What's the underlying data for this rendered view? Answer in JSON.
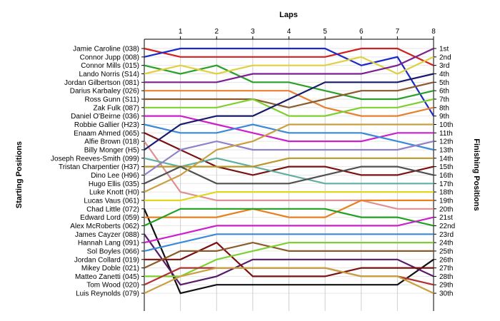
{
  "chart_data": {
    "type": "line",
    "title": "Laps",
    "ylabel_left": "Starting Positions",
    "ylabel_right": "Finishing Positions",
    "x": [
      0,
      1,
      2,
      3,
      4,
      5,
      6,
      7,
      8
    ],
    "x_tick_labels": [
      "1",
      "2",
      "3",
      "4",
      "5",
      "6",
      "7",
      "8"
    ],
    "finishing_labels": [
      "1st",
      "2nd",
      "3rd",
      "4th",
      "5th",
      "6th",
      "7th",
      "8th",
      "9th",
      "10th",
      "11th",
      "12th",
      "13th",
      "14th",
      "15th",
      "16th",
      "17th",
      "18th",
      "19th",
      "20th",
      "21st",
      "22nd",
      "23rd",
      "24th",
      "25th",
      "26th",
      "27th",
      "28th",
      "29th",
      "30th"
    ],
    "ylim": [
      1,
      30
    ],
    "grid": true,
    "series": [
      {
        "name": "Jamie Caroline (038)",
        "color": "#d02020",
        "positions": [
          1,
          2,
          2,
          2,
          2,
          2,
          1,
          1,
          3
        ]
      },
      {
        "name": "Connor Jupp (008)",
        "color": "#1c2ac8",
        "positions": [
          2,
          1,
          1,
          1,
          1,
          1,
          3,
          2,
          9
        ]
      },
      {
        "name": "Connor Mills (015)",
        "color": "#2aa02a",
        "positions": [
          3,
          4,
          3,
          5,
          5,
          6,
          7,
          7,
          6
        ]
      },
      {
        "name": "Lando Norris (S14)",
        "color": "#e0d040",
        "positions": [
          4,
          3,
          4,
          3,
          3,
          3,
          2,
          4,
          2
        ]
      },
      {
        "name": "Jordan Gilbertson (081)",
        "color": "#7a2090",
        "positions": [
          5,
          5,
          5,
          4,
          4,
          4,
          4,
          3,
          1
        ]
      },
      {
        "name": "Darius Karbaley (026)",
        "color": "#e88030",
        "positions": [
          6,
          6,
          6,
          6,
          6,
          8,
          9,
          9,
          8
        ]
      },
      {
        "name": "Ross Gunn (S11)",
        "color": "#8b5a2b",
        "positions": [
          7,
          7,
          7,
          7,
          8,
          7,
          6,
          6,
          5
        ]
      },
      {
        "name": "Zak Fulk (087)",
        "color": "#7ed030",
        "positions": [
          8,
          8,
          8,
          7,
          9,
          9,
          8,
          8,
          7
        ]
      },
      {
        "name": "Daniel O'Beirne (036)",
        "color": "#cc20cc",
        "positions": [
          9,
          9,
          10,
          11,
          12,
          12,
          12,
          11,
          11
        ]
      },
      {
        "name": "Robbie Gallier (H23)",
        "color": "#3a8ad8",
        "positions": [
          10,
          11,
          11,
          10,
          11,
          11,
          11,
          12,
          13
        ]
      },
      {
        "name": "Enaam Ahmed (065)",
        "color": "#7a1010",
        "positions": [
          11,
          13,
          15,
          16,
          15,
          15,
          16,
          16,
          15
        ]
      },
      {
        "name": "Alfie Brown (018)",
        "color": "#e09090",
        "positions": [
          12,
          18,
          19,
          19,
          19,
          19,
          19,
          20,
          20
        ]
      },
      {
        "name": "Billy Monger (H5)",
        "color": "#1a1a6a",
        "positions": [
          13,
          10,
          9,
          9,
          7,
          5,
          5,
          5,
          4
        ]
      },
      {
        "name": "Joseph Reeves-Smith (099)",
        "color": "#60b0a0",
        "positions": [
          14,
          15,
          14,
          15,
          16,
          17,
          17,
          17,
          17
        ]
      },
      {
        "name": "Tristan Charpentier (H37)",
        "color": "#b89828",
        "positions": [
          15,
          15,
          15,
          15,
          14,
          14,
          14,
          14,
          14
        ]
      },
      {
        "name": "Dino Lee (H96)",
        "color": "#9080c8",
        "positions": [
          16,
          13,
          12,
          13,
          13,
          13,
          13,
          13,
          12
        ]
      },
      {
        "name": "Hugo Ellis (035)",
        "color": "#505050",
        "positions": [
          17,
          15,
          17,
          17,
          17,
          16,
          15,
          15,
          16
        ]
      },
      {
        "name": "Luke Knott (H0)",
        "color": "#c8a040",
        "positions": [
          18,
          16,
          13,
          12,
          10,
          10,
          10,
          10,
          10
        ]
      },
      {
        "name": "Lucas Vaus (061)",
        "color": "#e0d820",
        "positions": [
          19,
          19,
          18,
          18,
          18,
          18,
          18,
          18,
          18
        ]
      },
      {
        "name": "Chad Little (072)",
        "color": "#101010",
        "positions": [
          20,
          30,
          29,
          29,
          29,
          29,
          29,
          29,
          26
        ]
      },
      {
        "name": "Edward Lord (059)",
        "color": "#e88020",
        "positions": [
          21,
          21,
          21,
          20,
          21,
          21,
          19,
          19,
          19
        ]
      },
      {
        "name": "Alex McRoberts (062)",
        "color": "#22a022",
        "positions": [
          22,
          20,
          20,
          20,
          20,
          20,
          21,
          21,
          22
        ]
      },
      {
        "name": "James Cayzer (088)",
        "color": "#5a1a6a",
        "positions": [
          23,
          29,
          28,
          26,
          26,
          26,
          26,
          26,
          28
        ]
      },
      {
        "name": "Hannah Lang (091)",
        "color": "#cc20cc",
        "positions": [
          24,
          23,
          22,
          22,
          22,
          22,
          22,
          22,
          21
        ]
      },
      {
        "name": "Sol Boyles (066)",
        "color": "#3a8ad8",
        "positions": [
          25,
          24,
          23,
          23,
          23,
          23,
          23,
          23,
          23
        ]
      },
      {
        "name": "Jordan Collard (019)",
        "color": "#7a1010",
        "positions": [
          26,
          26,
          24,
          28,
          28,
          28,
          27,
          27,
          27
        ]
      },
      {
        "name": "Mikey Doble (021)",
        "color": "#8b5a2b",
        "positions": [
          27,
          25,
          25,
          24,
          25,
          25,
          25,
          25,
          25
        ]
      },
      {
        "name": "Matteo Zanetti (045)",
        "color": "#7ed030",
        "positions": [
          28,
          28,
          26,
          25,
          24,
          24,
          24,
          24,
          24
        ]
      },
      {
        "name": "Tom Wood (020)",
        "color": "#b03030",
        "positions": [
          29,
          27,
          27,
          27,
          27,
          27,
          28,
          28,
          29
        ]
      },
      {
        "name": "Luis Reynolds (079)",
        "color": "#c8a040",
        "positions": [
          30,
          28,
          27,
          27,
          27,
          27,
          28,
          28,
          30
        ]
      }
    ]
  }
}
